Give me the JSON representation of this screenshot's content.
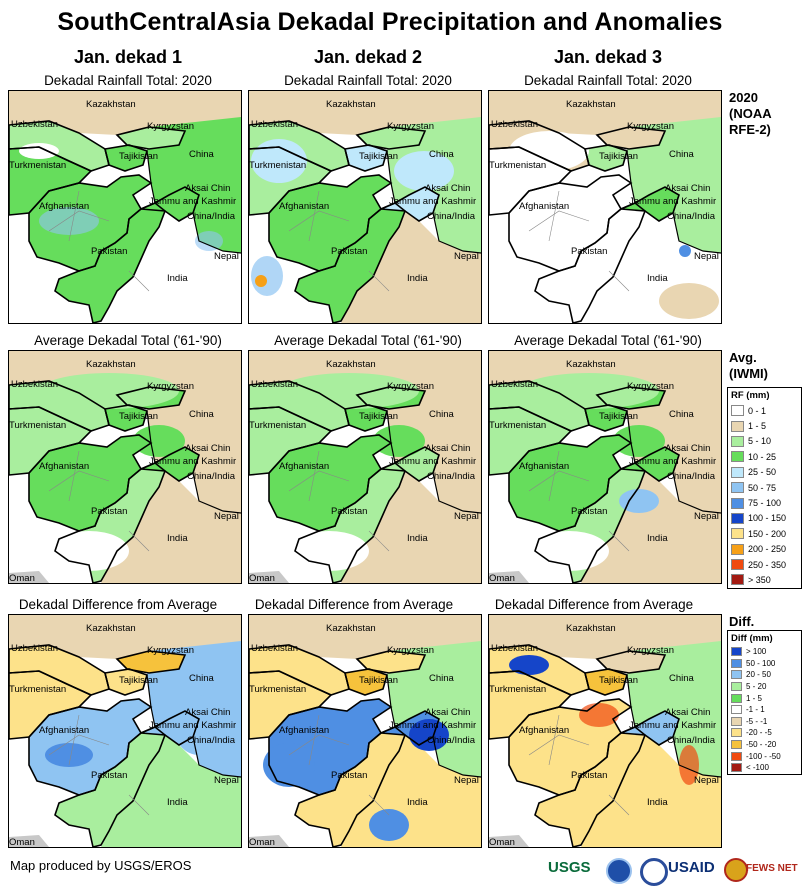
{
  "title": "SouthCentralAsia Dekadal Precipitation and Anomalies",
  "columns": [
    "Jan. dekad 1",
    "Jan. dekad 2",
    "Jan. dekad 3"
  ],
  "row_titles": [
    "Dekadal Rainfall Total: 2020",
    "Average Dekadal Total ('61-'90)",
    "Dekadal Difference from Average"
  ],
  "row_labels": [
    {
      "lines": [
        "2020",
        "(NOAA",
        "RFE-2)"
      ]
    },
    {
      "lines": [
        "Avg.",
        "(IWMI)"
      ]
    },
    {
      "lines": [
        "Diff."
      ]
    }
  ],
  "map_labels": {
    "kazakhstan": "Kazakhstan",
    "uzbekistan": "Uzbekistan",
    "kyrgyzstan": "Kyrgyzstan",
    "tajikistan": "Tajikistan",
    "turkmenistan": "Turkmenistan",
    "china": "China",
    "aksai_chin": "Aksai Chin",
    "jammu": "Jammu and Kashmir",
    "china_india": "China/India",
    "afghanistan": "Afghanistan",
    "pakistan": "Pakistan",
    "nepal": "Nepal",
    "india": "India",
    "oman": "Oman"
  },
  "rf_legend": {
    "title": "RF (mm)",
    "items": [
      {
        "label": "0 - 1",
        "color": "#ffffff"
      },
      {
        "label": "1 - 5",
        "color": "#e9d6b2"
      },
      {
        "label": "5 - 10",
        "color": "#a9ee9e"
      },
      {
        "label": "10 - 25",
        "color": "#66dd5c"
      },
      {
        "label": "25 - 50",
        "color": "#bfe8fb"
      },
      {
        "label": "50 - 75",
        "color": "#8fc4f2"
      },
      {
        "label": "75 - 100",
        "color": "#4f8fe3"
      },
      {
        "label": "100 - 150",
        "color": "#1545c9"
      },
      {
        "label": "150 - 200",
        "color": "#fde28a"
      },
      {
        "label": "200 - 250",
        "color": "#f6a017"
      },
      {
        "label": "250 - 350",
        "color": "#f04a10"
      },
      {
        "label": "> 350",
        "color": "#a31a12"
      }
    ]
  },
  "diff_legend": {
    "title": "Diff (mm)",
    "items": [
      {
        "label": "> 100",
        "color": "#1545c9"
      },
      {
        "label": "50 - 100",
        "color": "#4f8fe3"
      },
      {
        "label": "20 - 50",
        "color": "#8fc4f2"
      },
      {
        "label": "5 - 20",
        "color": "#a9ee9e"
      },
      {
        "label": "1 - 5",
        "color": "#66dd5c"
      },
      {
        "label": "-1 - 1",
        "color": "#ffffff"
      },
      {
        "label": "-5 - -1",
        "color": "#e9d6b2"
      },
      {
        "label": "-20 - -5",
        "color": "#fde28a"
      },
      {
        "label": "-50 - -20",
        "color": "#f6c23c"
      },
      {
        "label": "-100 - -50",
        "color": "#f04a10"
      },
      {
        "label": "< -100",
        "color": "#a31a12"
      }
    ]
  },
  "footer": "Map produced by USGS/EROS",
  "logos": [
    "USGS",
    "USAID",
    "FEWS NET"
  ]
}
